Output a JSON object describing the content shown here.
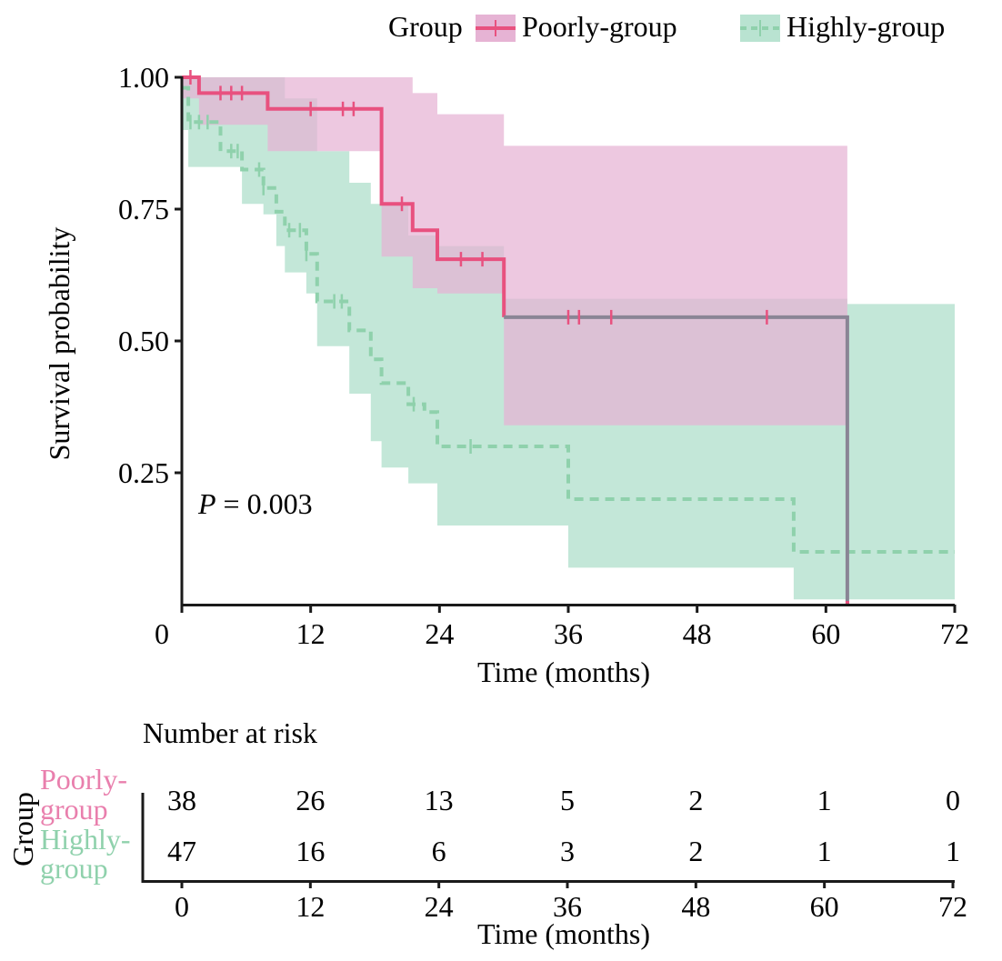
{
  "chart_data": {
    "type": "line",
    "subtype": "kaplan-meier",
    "legend": {
      "title": "Group",
      "entries": [
        {
          "name": "Poorly-group",
          "color": "#e8517f",
          "band_color": "#e6b3d4",
          "dash": "solid"
        },
        {
          "name": "Highly-group",
          "color": "#8fd1ac",
          "band_color": "#b9e3d1",
          "dash": "dashed"
        }
      ],
      "placement": "top"
    },
    "xlabel": "Time (months)",
    "ylabel": "Survival probability",
    "xlim": [
      0,
      72
    ],
    "ylim": [
      0,
      1
    ],
    "x_ticks": [
      0,
      12,
      24,
      36,
      48,
      60,
      72
    ],
    "x_tick_labels": [
      "0",
      "12",
      "24",
      "36",
      "48",
      "60",
      "72"
    ],
    "y_ticks": [
      0.25,
      0.5,
      0.75,
      1.0
    ],
    "y_tick_labels": [
      "0.25",
      "0.50",
      "0.75",
      "1.00"
    ],
    "annotation": {
      "p_label": "P",
      "p_value_text": " = 0.003"
    },
    "series": [
      {
        "name": "Poorly-group",
        "steps": [
          [
            0,
            1.0
          ],
          [
            1.6,
            0.97
          ],
          [
            8,
            0.94
          ],
          [
            18.6,
            0.76
          ],
          [
            21.5,
            0.71
          ],
          [
            23.8,
            0.655
          ],
          [
            30,
            0.545
          ],
          [
            62,
            0.0
          ]
        ],
        "end": 62,
        "ci_upper": [
          [
            0,
            1.0
          ],
          [
            18.6,
            1.0
          ],
          [
            21.5,
            0.97
          ],
          [
            23.8,
            0.93
          ],
          [
            30,
            0.87
          ],
          [
            62,
            0.87
          ]
        ],
        "ci_lower": [
          [
            0,
            0.96
          ],
          [
            1.6,
            0.91
          ],
          [
            8,
            0.86
          ],
          [
            18.6,
            0.66
          ],
          [
            21.5,
            0.6
          ],
          [
            23.8,
            0.59
          ],
          [
            30,
            0.34
          ],
          [
            62,
            0.34
          ]
        ],
        "censor": [
          0.8,
          3.6,
          4.6,
          5.6,
          12,
          15,
          16,
          20.5,
          26,
          28,
          36,
          37,
          40,
          54.5
        ]
      },
      {
        "name": "Highly-group",
        "steps": [
          [
            0,
            0.98
          ],
          [
            0.6,
            0.915
          ],
          [
            3.6,
            0.86
          ],
          [
            5.6,
            0.825
          ],
          [
            7.6,
            0.79
          ],
          [
            8.8,
            0.745
          ],
          [
            9.6,
            0.71
          ],
          [
            11.6,
            0.665
          ],
          [
            12.6,
            0.575
          ],
          [
            15.6,
            0.52
          ],
          [
            17.6,
            0.465
          ],
          [
            18.6,
            0.42
          ],
          [
            21.1,
            0.38
          ],
          [
            22.6,
            0.365
          ],
          [
            23.8,
            0.3
          ],
          [
            36,
            0.2
          ],
          [
            57,
            0.1
          ],
          [
            72,
            0.1
          ]
        ],
        "ci_upper": [
          [
            0,
            1.0
          ],
          [
            8.8,
            1.0
          ],
          [
            9.6,
            0.96
          ],
          [
            12.6,
            0.86
          ],
          [
            15.6,
            0.8
          ],
          [
            17.6,
            0.76
          ],
          [
            21.1,
            0.7
          ],
          [
            23.8,
            0.68
          ],
          [
            30,
            0.58
          ],
          [
            61.5,
            0.58
          ],
          [
            62,
            0.57
          ],
          [
            72,
            0.57
          ]
        ],
        "ci_lower": [
          [
            0,
            0.9
          ],
          [
            0.6,
            0.83
          ],
          [
            5.6,
            0.76
          ],
          [
            7.6,
            0.74
          ],
          [
            8.8,
            0.68
          ],
          [
            9.6,
            0.63
          ],
          [
            11.6,
            0.59
          ],
          [
            12.6,
            0.49
          ],
          [
            15.6,
            0.4
          ],
          [
            17.6,
            0.31
          ],
          [
            18.6,
            0.26
          ],
          [
            21.1,
            0.23
          ],
          [
            23.8,
            0.15
          ],
          [
            30,
            0.15
          ],
          [
            36,
            0.07
          ],
          [
            57,
            0.05
          ],
          [
            57,
            0.01
          ],
          [
            72,
            0.01
          ]
        ],
        "censor": [
          0.8,
          1.6,
          2.4,
          4.6,
          5.2,
          7.2,
          7.6,
          10,
          11,
          11.6,
          14.2,
          14.9,
          21.6,
          26.9
        ]
      }
    ],
    "risk_table": {
      "title": "Number at risk",
      "group_axis_label": "Group",
      "xlabel": "Time (months)",
      "x_ticks": [
        0,
        12,
        24,
        36,
        48,
        60,
        72
      ],
      "x_tick_labels": [
        "0",
        "12",
        "24",
        "36",
        "48",
        "60",
        "72"
      ],
      "rows": [
        {
          "name": "Poorly-group",
          "label_line1": "Poorly-",
          "label_line2": "group",
          "color": "#e97fad",
          "values": [
            "38",
            "26",
            "13",
            "5",
            "2",
            "1",
            "0"
          ]
        },
        {
          "name": "Highly-group",
          "label_line1": "Highly-",
          "label_line2": "group",
          "color": "#8fd1ac",
          "values": [
            "47",
            "16",
            "6",
            "3",
            "2",
            "1",
            "1"
          ]
        }
      ]
    }
  }
}
